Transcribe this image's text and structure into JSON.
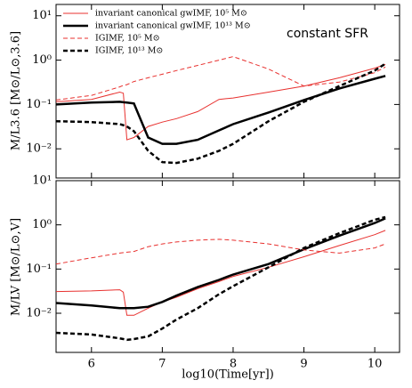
{
  "chart_data": [
    {
      "type": "line",
      "ylabel": "M/L3.6 [M⊙/L⊙,3.6]",
      "annotation": "constant SFR",
      "log_y": true,
      "legend": "upper left",
      "xlim": [
        5.5,
        10.35
      ],
      "ylim": [
        0.0022,
        18
      ],
      "yticks": [
        {
          "value": 10,
          "label": "10¹"
        },
        {
          "value": 1,
          "label": "10⁰"
        },
        {
          "value": 0.1,
          "label": "10⁻¹"
        },
        {
          "value": 0.01,
          "label": "10⁻²"
        }
      ],
      "x": [
        5.5,
        6.0,
        6.4,
        6.45,
        6.5,
        6.6,
        6.8,
        7.0,
        7.2,
        7.5,
        7.8,
        8.0,
        8.5,
        9.0,
        9.5,
        10.0,
        10.15
      ],
      "series": [
        {
          "name": "invariant canonical gwIMF,  10⁵ M⊙",
          "color": "#e8312f",
          "width": 1,
          "dashed": false,
          "values": [
            0.115,
            0.13,
            0.19,
            0.18,
            0.016,
            0.018,
            0.032,
            0.04,
            0.048,
            0.069,
            0.13,
            0.14,
            0.19,
            0.26,
            0.4,
            0.66,
            0.8
          ]
        },
        {
          "name": "invariant canonical gwIMF,  10¹³ M⊙",
          "color": "#000000",
          "width": 2.5,
          "dashed": false,
          "values": [
            0.1,
            0.11,
            0.115,
            0.112,
            0.11,
            0.105,
            0.018,
            0.013,
            0.013,
            0.016,
            0.026,
            0.036,
            0.066,
            0.126,
            0.23,
            0.38,
            0.44
          ]
        },
        {
          "name": "IGIMF,  10⁵ M⊙",
          "color": "#e8312f",
          "width": 1,
          "dashed": true,
          "values": [
            0.126,
            0.16,
            0.25,
            0.27,
            0.28,
            0.33,
            0.4,
            0.48,
            0.58,
            0.76,
            1.0,
            1.2,
            0.63,
            0.26,
            0.32,
            0.52,
            0.7
          ]
        },
        {
          "name": "IGIMF,  10¹³ M⊙",
          "color": "#000000",
          "width": 2.5,
          "dashed": true,
          "values": [
            0.042,
            0.04,
            0.036,
            0.034,
            0.032,
            0.025,
            0.009,
            0.005,
            0.0048,
            0.006,
            0.009,
            0.013,
            0.042,
            0.115,
            0.26,
            0.58,
            0.83
          ]
        }
      ]
    },
    {
      "type": "line",
      "ylabel": "M/LV [M⊙/L⊙,V]",
      "xlabel": "log10(Time[yr])",
      "log_y": true,
      "xlim": [
        5.5,
        10.35
      ],
      "ylim": [
        0.0013,
        10
      ],
      "xticks": [
        6,
        7,
        8,
        9,
        10
      ],
      "yticks": [
        {
          "value": 10,
          "label": "10¹"
        },
        {
          "value": 1,
          "label": "10⁰"
        },
        {
          "value": 0.1,
          "label": "10⁻¹"
        },
        {
          "value": 0.01,
          "label": "10⁻²"
        }
      ],
      "x": [
        5.5,
        6.0,
        6.4,
        6.45,
        6.5,
        6.6,
        6.8,
        7.0,
        7.2,
        7.5,
        7.8,
        8.0,
        8.5,
        9.0,
        9.5,
        10.0,
        10.15
      ],
      "series": [
        {
          "color": "#e8312f",
          "width": 1,
          "dashed": false,
          "values": [
            0.031,
            0.032,
            0.034,
            0.03,
            0.009,
            0.009,
            0.013,
            0.018,
            0.023,
            0.036,
            0.052,
            0.068,
            0.11,
            0.19,
            0.34,
            0.6,
            0.75
          ]
        },
        {
          "color": "#000000",
          "width": 2.5,
          "dashed": false,
          "values": [
            0.017,
            0.015,
            0.013,
            0.013,
            0.013,
            0.013,
            0.014,
            0.018,
            0.025,
            0.039,
            0.057,
            0.075,
            0.13,
            0.28,
            0.57,
            1.1,
            1.4
          ]
        },
        {
          "color": "#e8312f",
          "width": 1,
          "dashed": true,
          "values": [
            0.13,
            0.18,
            0.23,
            0.235,
            0.24,
            0.25,
            0.32,
            0.37,
            0.41,
            0.45,
            0.47,
            0.45,
            0.37,
            0.27,
            0.23,
            0.3,
            0.37
          ]
        },
        {
          "color": "#000000",
          "width": 2.5,
          "dashed": true,
          "values": [
            0.0036,
            0.0033,
            0.0027,
            0.0026,
            0.0025,
            0.0026,
            0.003,
            0.0045,
            0.0072,
            0.013,
            0.027,
            0.041,
            0.11,
            0.3,
            0.65,
            1.3,
            1.5
          ]
        }
      ]
    }
  ]
}
